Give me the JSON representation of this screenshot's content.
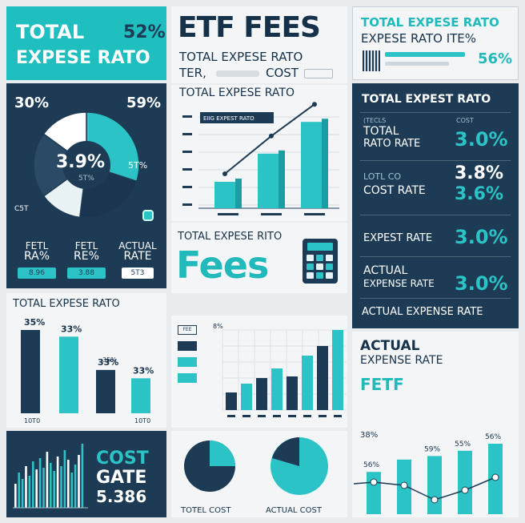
{
  "colors": {
    "navy": "#1d3b55",
    "teal": "#27c6c6",
    "light": "#f4f5f7",
    "white": "#ffffff"
  },
  "top_left": {
    "title_line1": "TOTAL",
    "title_value": "52%",
    "title_line2": "EXPESE RATO"
  },
  "pie_panel": {
    "label_tl": "30%",
    "label_tr": "59%",
    "center_value": "3.9%",
    "center_sub": "5T%",
    "label_right": "5T%",
    "label_bl": "C5T",
    "slices": [
      {
        "value": 30,
        "color": "#2bc3c5"
      },
      {
        "value": 22,
        "color": "#1b3550"
      },
      {
        "value": 13,
        "color": "#e9f2f4"
      },
      {
        "value": 20,
        "color": "#2a4a66"
      },
      {
        "value": 15,
        "color": "#ffffff"
      }
    ],
    "footer": [
      {
        "l1": "FETL",
        "l2": "RA%",
        "badge": "8.96"
      },
      {
        "l1": "FETL",
        "l2": "RE%",
        "badge": "3.88"
      },
      {
        "l1": "ACTUAL",
        "l2": "RATE",
        "badge": "5T3"
      }
    ]
  },
  "center_top": {
    "title": "ETF FEES",
    "line1": "TOTAL EXPESE RATO",
    "line2": "TER,",
    "line2b": "COST"
  },
  "center_chart": {
    "heading": "TOTAL EXPESE RATO",
    "chart_badge": "EIIG EXPEST RATO",
    "chart_data": {
      "type": "bar",
      "values": [
        30,
        62,
        98
      ]
    }
  },
  "fees_panel": {
    "subtitle": "TOTAL EXPESE RITO",
    "title": "Fees"
  },
  "top_right": {
    "line1": "TOTAL EXPESE RATO",
    "line2": "EXPESE RATO ITE%",
    "value": "56%"
  },
  "rates_panel": {
    "header": "TOTAL EXPEST RATO",
    "rows": [
      {
        "small": "(TECLS",
        "label1": "TOTAL",
        "label2": "RATO RATE",
        "small2": "COST",
        "value": "3.0%"
      },
      {
        "small": "LOTL CO",
        "label1": "COST RATE",
        "label2": "",
        "small2": "",
        "value": "3.8%",
        "value2": "3.6%"
      },
      {
        "small": "",
        "label1": "EXPEST RATE",
        "label2": "",
        "small2": "",
        "value": "3.0%"
      },
      {
        "small": "",
        "label1": "ACTUAL",
        "label2": "EXPENSE RATE",
        "small2": "",
        "value": "3.0%"
      }
    ],
    "footer": "ACTUAL EXPENSE RATE"
  },
  "bottom_left": {
    "title": "TOTAL EXPESE RATO",
    "chart_data": {
      "type": "bar",
      "labels": [
        "35%",
        "33%",
        "33%",
        "33%"
      ],
      "sublabel": "35%",
      "values": [
        100,
        92,
        52,
        42
      ],
      "xticks": [
        "10T0",
        "10T0"
      ]
    }
  },
  "bottom_mid": {
    "legend": [
      "FEE",
      "",
      "",
      ""
    ],
    "ytick": "8%",
    "chart_data": {
      "type": "bar",
      "values": [
        22,
        33,
        40,
        52,
        42,
        68,
        80,
        100
      ]
    }
  },
  "bottom_right": {
    "title_line1": "ACTUAL",
    "title_line2": "EXPENSE RATE",
    "badge": "FETF",
    "chart_data": {
      "type": "bar",
      "values": [
        48,
        62,
        66,
        72,
        80,
        88
      ],
      "labels": [
        "58%",
        "56%",
        "",
        "59%",
        "55%",
        "56%"
      ],
      "label_left": "38%"
    }
  },
  "bottom_cost": {
    "line1": "COST",
    "line2": "GATE",
    "line3": "5.386"
  },
  "bottom_pies": {
    "label_left": "TOTEL COST",
    "label_right": "ACTUAL COST"
  }
}
